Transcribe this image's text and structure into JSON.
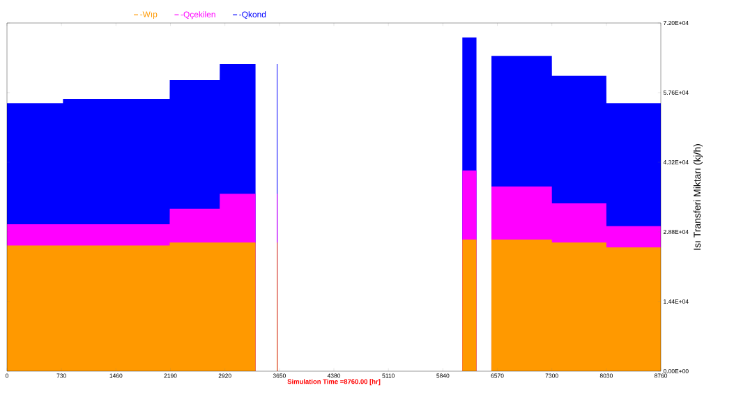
{
  "chart_data": {
    "type": "area",
    "xlabel": "Simulation Time =8760.00 [hr]",
    "ylabel": "Isı Transferi Miktarı (kj/h)",
    "x": [
      0,
      750,
      751,
      2180,
      2181,
      2850,
      2851,
      3330,
      3331,
      3615,
      3616,
      3625,
      3626,
      6100,
      6101,
      6290,
      6291,
      6490,
      6491,
      7300,
      7301,
      8030,
      8031,
      8760
    ],
    "series": [
      {
        "name": "-Wıp",
        "color": "#ff9900",
        "values": [
          26000,
          26000,
          26000,
          26000,
          26600,
          26600,
          26600,
          26600,
          0,
          0,
          26600,
          26600,
          0,
          0,
          27200,
          27200,
          0,
          0,
          27200,
          27200,
          26600,
          26600,
          25600,
          25600
        ]
      },
      {
        "name": "-Qçekilen",
        "color": "#ff00ff",
        "values": [
          30400,
          30400,
          30400,
          30400,
          33600,
          33600,
          36700,
          36700,
          0,
          0,
          36700,
          36700,
          0,
          0,
          41500,
          41500,
          0,
          0,
          38200,
          38200,
          34700,
          34700,
          30000,
          30000
        ]
      },
      {
        "name": "-Qkond",
        "color": "#0000ff",
        "values": [
          55400,
          55400,
          56300,
          56300,
          60200,
          60200,
          63500,
          63500,
          0,
          0,
          63500,
          63500,
          0,
          0,
          69000,
          69000,
          0,
          0,
          65200,
          65200,
          61100,
          61100,
          55400,
          55400
        ]
      }
    ],
    "xlim": [
      0,
      8760
    ],
    "xticks": [
      0,
      730,
      1460,
      2190,
      2920,
      3650,
      4380,
      5110,
      5840,
      6570,
      7300,
      8030,
      8760
    ],
    "ylim": [
      0,
      72000
    ],
    "yticks": [
      {
        "value": 0,
        "label": "0.00E+00"
      },
      {
        "value": 14400,
        "label": "1.44E+04"
      },
      {
        "value": 28800,
        "label": "2.88E+04"
      },
      {
        "value": 43200,
        "label": "4.32E+04"
      },
      {
        "value": 57600,
        "label": "5.76E+04"
      },
      {
        "value": 72000,
        "label": "7.20E+04"
      }
    ],
    "legend": "top left",
    "grid": false
  }
}
